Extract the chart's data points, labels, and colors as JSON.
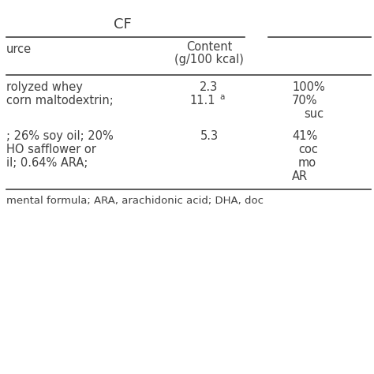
{
  "title": "CF",
  "header_source": "urce",
  "header_content_line1": "Content",
  "header_content_line2": "(g/100 kcal)",
  "row1_source": "rolyzed whey",
  "row1_content": "2.3",
  "row1_right": "100%",
  "row2_source": "corn maltodextrin;",
  "row2_content": "11.1",
  "row2_content_sup": "a",
  "row2_right1": "70%",
  "row2_right2": "suc",
  "row3_source1": "; 26% soy oil; 20%",
  "row3_source2": "HO safflower or",
  "row3_source3": "il; 0.64% ARA;",
  "row3_content": "5.3",
  "row3_right1": "41%",
  "row3_right2": "coc",
  "row3_right3": "mo",
  "row3_right4": "AR",
  "footnote": "mental formula; ARA, arachidonic acid; DHA, doc",
  "bg_color": "#ffffff",
  "text_color": "#404040",
  "line_color": "#404040",
  "font_size": 10.5,
  "title_font_size": 13
}
